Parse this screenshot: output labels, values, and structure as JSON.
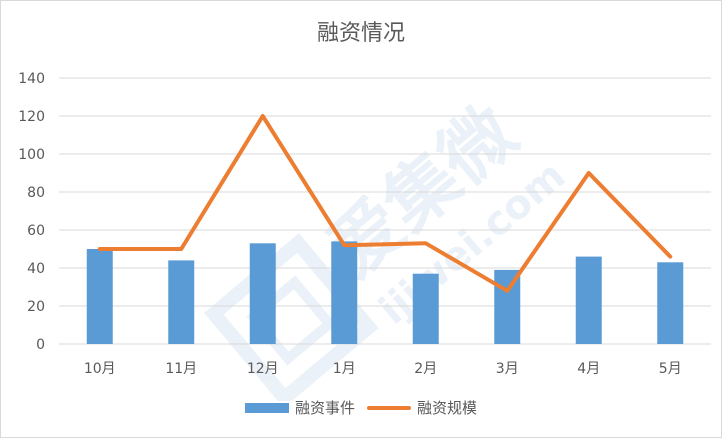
{
  "chart_data": {
    "type": "bar",
    "title": "融资情况",
    "categories": [
      "10月",
      "11月",
      "12月",
      "1月",
      "2月",
      "3月",
      "4月",
      "5月"
    ],
    "series": [
      {
        "name": "融资事件",
        "type": "bar",
        "values": [
          50,
          44,
          53,
          54,
          37,
          39,
          46,
          43
        ],
        "color": "#5b9bd5"
      },
      {
        "name": "融资规模",
        "type": "line",
        "values": [
          50,
          50,
          120,
          52,
          53,
          28,
          90,
          46
        ],
        "color": "#ed7d31"
      }
    ],
    "ylim": [
      0,
      140
    ],
    "yticks": [
      0,
      20,
      40,
      60,
      80,
      100,
      120,
      140
    ],
    "grid": true,
    "legend_position": "bottom"
  },
  "watermark": {
    "text_cn": "爱集微",
    "text_url": "ijiwei.com",
    "color": "#dbe7f3"
  }
}
